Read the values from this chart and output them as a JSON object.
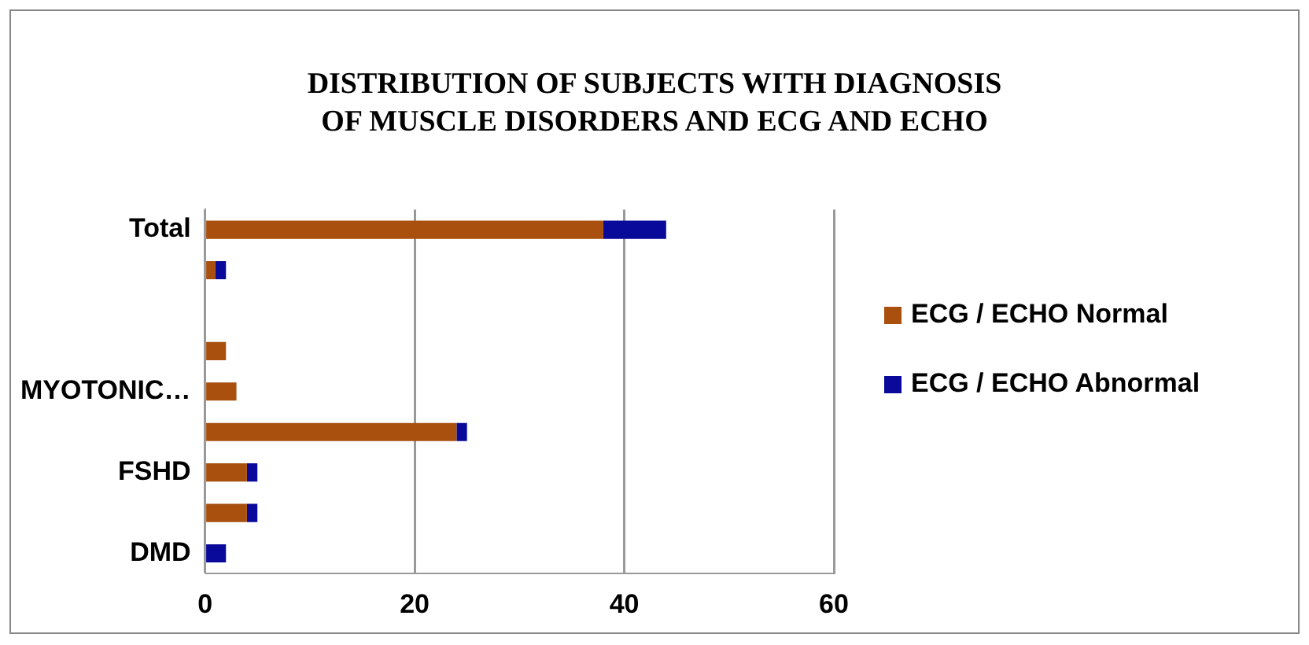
{
  "chart_data": {
    "type": "bar",
    "orientation": "horizontal",
    "stacked": true,
    "title": "DISTRIBUTION OF SUBJECTS WITH DIAGNOSIS\nOF MUSCLE DISORDERS AND ECG AND ECHO",
    "categories": [
      "Total",
      null,
      null,
      null,
      "MYOTONIC…",
      null,
      "FSHD",
      null,
      "DMD"
    ],
    "series": [
      {
        "name": "ECG / ECHO Normal",
        "color": "#a9500f",
        "values": [
          38,
          1,
          0,
          2,
          3,
          24,
          4,
          4,
          0
        ]
      },
      {
        "name": "ECG / ECHO Abnormal",
        "color": "#0a0a9a",
        "values": [
          6,
          1,
          0,
          0,
          0,
          1,
          1,
          1,
          2
        ]
      }
    ],
    "xlim": [
      0,
      60
    ],
    "xticks": [
      0,
      20,
      40,
      60
    ],
    "grid": "x",
    "legend": "right"
  }
}
